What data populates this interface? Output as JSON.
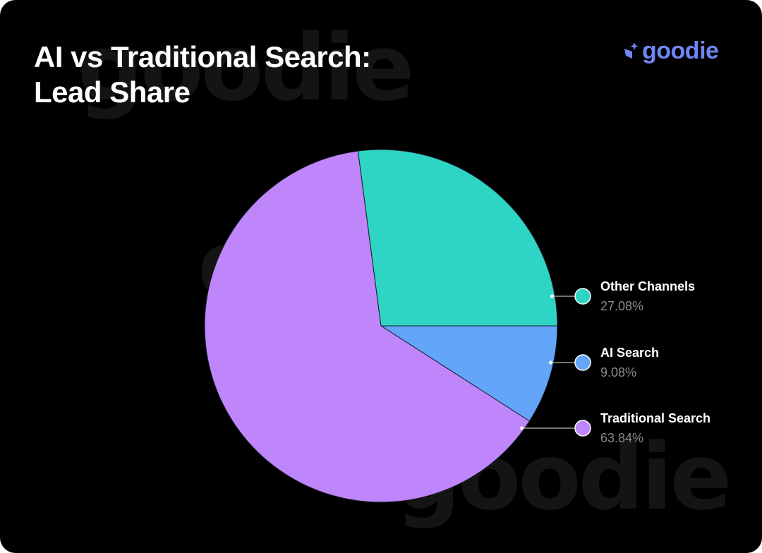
{
  "watermark": "goodie",
  "logo": {
    "text": "goodie",
    "color": "#6f86f4"
  },
  "chart_data": {
    "type": "pie",
    "title": "AI vs Traditional Search: Lead Share",
    "title_lines": [
      "AI vs Traditional Search:",
      "Lead Share"
    ],
    "start_angle_deg": 0,
    "direction": "clockwise",
    "legend_position": "right",
    "slices": [
      {
        "label": "AI Search",
        "value": 9.08,
        "display": "9.08%",
        "color": "#62a5f9"
      },
      {
        "label": "Traditional Search",
        "value": 63.84,
        "display": "63.84%",
        "color": "#bf86fb"
      },
      {
        "label": "Other Channels",
        "value": 27.08,
        "display": "27.08%",
        "color": "#2fd5c4"
      }
    ],
    "legend_order": [
      2,
      0,
      1
    ]
  }
}
